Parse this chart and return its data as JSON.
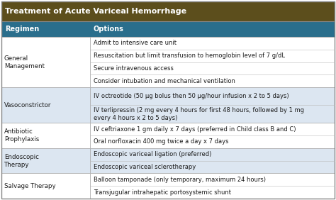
{
  "title": "Treatment of Acute Variceal Hemorrhage",
  "title_bg": "#5c4e1c",
  "title_color": "#ffffff",
  "header_bg": "#2a6e8c",
  "header_color": "#ffffff",
  "col1_header": "Regimen",
  "col2_header": "Options",
  "row_bg_light": "#ffffff",
  "row_bg_dark": "#dce6f1",
  "border_color": "#999999",
  "text_color": "#1a1a1a",
  "col_split": 0.265,
  "rows": [
    {
      "regimen": "General\nManagement",
      "options": [
        "Admit to intensive care unit",
        "Resuscitation but limit transfusion to hemoglobin level of 7 g/dL",
        "Secure intravenous access",
        "Consider intubation and mechanical ventilation"
      ],
      "shade": false
    },
    {
      "regimen": "Vasoconstrictor",
      "options": [
        "IV octreotide (50 μg bolus then 50 μg/hour infusion x 2 to 5 days)",
        "IV terlipressin (2 mg every 4 hours for first 48 hours, followed by 1 mg\nevery 4 hours x 2 to 5 days)"
      ],
      "shade": true
    },
    {
      "regimen": "Antibiotic\nProphylaxis",
      "options": [
        "IV ceftriaxone 1 gm daily x 7 days (preferred in Child class B and C)",
        "Oral norfloxacin 400 mg twice a day x 7 days"
      ],
      "shade": false
    },
    {
      "regimen": "Endoscopic\nTherapy",
      "options": [
        "Endoscopic variceal ligation (preferred)",
        "Endoscopic variceal sclerotherapy"
      ],
      "shade": true
    },
    {
      "regimen": "Salvage Therapy",
      "options": [
        "Balloon tamponade (only temporary, maximum 24 hours)",
        "Transjugular intrahepatic portosystemic shunt"
      ],
      "shade": false
    }
  ]
}
